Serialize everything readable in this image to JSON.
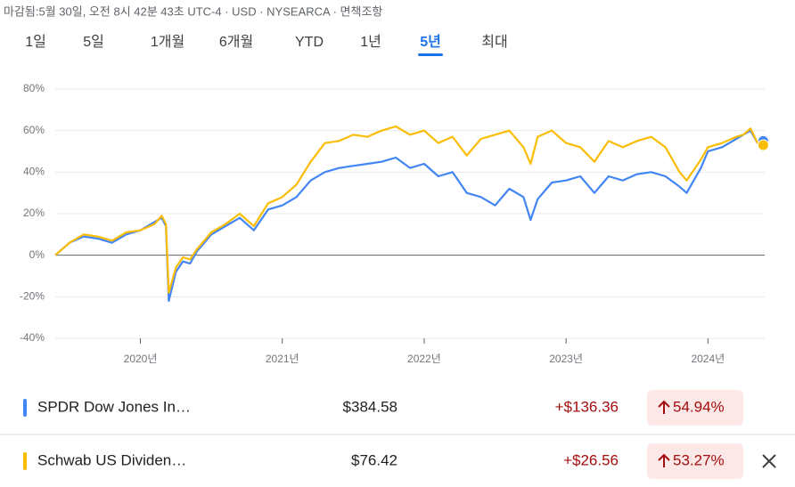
{
  "header": {
    "status": "마감됨:5월 30일, 오전 8시 42분 43초 UTC-4 · USD · NYSEARCA · 면책조항"
  },
  "tabs": {
    "items": [
      "1일",
      "5일",
      "1개월",
      "6개월",
      "YTD",
      "1년",
      "5년",
      "최대"
    ],
    "selected": 6
  },
  "chart_data": {
    "type": "line",
    "x": [
      2019.4,
      2019.5,
      2019.6,
      2019.7,
      2019.8,
      2019.9,
      2020.0,
      2020.1,
      2020.15,
      2020.18,
      2020.2,
      2020.25,
      2020.3,
      2020.35,
      2020.4,
      2020.5,
      2020.6,
      2020.7,
      2020.8,
      2020.9,
      2021.0,
      2021.1,
      2021.2,
      2021.3,
      2021.4,
      2021.5,
      2021.6,
      2021.7,
      2021.8,
      2021.9,
      2022.0,
      2022.1,
      2022.2,
      2022.3,
      2022.4,
      2022.5,
      2022.6,
      2022.7,
      2022.75,
      2022.8,
      2022.9,
      2023.0,
      2023.1,
      2023.2,
      2023.3,
      2023.4,
      2023.5,
      2023.6,
      2023.7,
      2023.8,
      2023.85,
      2023.95,
      2024.0,
      2024.1,
      2024.2,
      2024.25,
      2024.3,
      2024.35,
      2024.39
    ],
    "series": [
      {
        "name": "SPDR Dow Jones In…",
        "color": "#4285f4",
        "values": [
          0,
          6,
          9,
          8,
          6,
          10,
          12,
          16,
          18,
          14,
          -22,
          -8,
          -3,
          -4,
          2,
          10,
          14,
          18,
          12,
          22,
          24,
          28,
          36,
          40,
          42,
          43,
          44,
          45,
          47,
          42,
          44,
          38,
          40,
          30,
          28,
          24,
          32,
          28,
          17,
          27,
          35,
          36,
          38,
          30,
          38,
          36,
          39,
          40,
          38,
          33,
          30,
          42,
          50,
          52,
          56,
          58,
          60,
          54,
          55
        ]
      },
      {
        "name": "Schwab US Dividen…",
        "color": "#fbbc04",
        "values": [
          0,
          6,
          10,
          9,
          7,
          11,
          12,
          15,
          19,
          15,
          -18,
          -6,
          -1,
          -2,
          3,
          11,
          15,
          20,
          14,
          25,
          28,
          34,
          45,
          54,
          55,
          58,
          57,
          60,
          62,
          58,
          60,
          54,
          57,
          48,
          56,
          58,
          60,
          52,
          44,
          57,
          60,
          54,
          52,
          45,
          55,
          52,
          55,
          57,
          52,
          40,
          36,
          46,
          52,
          54,
          57,
          58,
          61,
          54,
          53
        ]
      }
    ],
    "xlim": [
      2019.4,
      2024.4
    ],
    "xticks": [
      {
        "value": 2020,
        "label": "2020년"
      },
      {
        "value": 2021,
        "label": "2021년"
      },
      {
        "value": 2022,
        "label": "2022년"
      },
      {
        "value": 2023,
        "label": "2023년"
      },
      {
        "value": 2024,
        "label": "2024년"
      }
    ],
    "ylim": [
      -40,
      80
    ],
    "yticks": [
      {
        "value": -40,
        "label": "-40%"
      },
      {
        "value": -20,
        "label": "-20%"
      },
      {
        "value": 0,
        "label": "0%"
      },
      {
        "value": 20,
        "label": "20%"
      },
      {
        "value": 40,
        "label": "40%"
      },
      {
        "value": 60,
        "label": "60%"
      },
      {
        "value": 80,
        "label": "80%"
      }
    ],
    "grid": true
  },
  "rows": [
    {
      "price": "$384.58",
      "change": "+$136.36",
      "percent": "54.94%"
    },
    {
      "price": "$76.42",
      "change": "+$26.56",
      "percent": "53.27%"
    }
  ]
}
